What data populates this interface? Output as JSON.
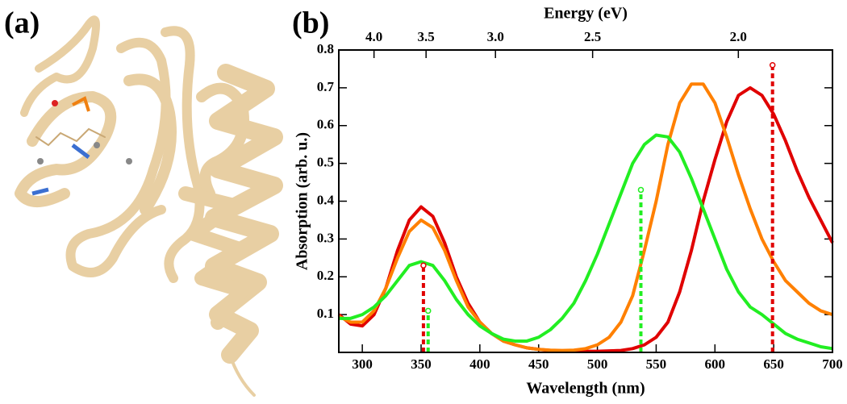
{
  "panel_a_label": "(a)",
  "chart_data": {
    "type": "line",
    "panel_label": "(b)",
    "xlabel": "Wavelength (nm)",
    "ylabel": "Absorption (arb. u.)",
    "x2label": "Energy (eV)",
    "xlim": [
      280,
      700
    ],
    "ylim": [
      0,
      0.8
    ],
    "xticks": [
      300,
      350,
      400,
      450,
      500,
      550,
      600,
      650,
      700
    ],
    "yticks": [
      0.1,
      0.2,
      0.3,
      0.4,
      0.5,
      0.6,
      0.7,
      0.8
    ],
    "x2ticks": [
      {
        "value": 4.0,
        "label": "4.0"
      },
      3.5,
      {
        "value": 3.0,
        "label": "3.0"
      },
      2.5,
      {
        "value": 2.0,
        "label": "2.0"
      }
    ],
    "x": [
      280,
      290,
      300,
      310,
      320,
      330,
      340,
      350,
      360,
      370,
      380,
      390,
      400,
      410,
      420,
      430,
      440,
      450,
      460,
      470,
      480,
      490,
      500,
      510,
      520,
      530,
      540,
      550,
      560,
      570,
      580,
      590,
      600,
      610,
      620,
      630,
      640,
      650,
      660,
      670,
      680,
      690,
      700
    ],
    "series": [
      {
        "color": "#e00000",
        "values": [
          0.1,
          0.075,
          0.07,
          0.1,
          0.17,
          0.27,
          0.35,
          0.385,
          0.36,
          0.29,
          0.2,
          0.13,
          0.08,
          0.05,
          0.03,
          0.02,
          0.012,
          0.008,
          0.005,
          0.004,
          0.003,
          0.003,
          0.003,
          0.004,
          0.005,
          0.01,
          0.02,
          0.04,
          0.08,
          0.16,
          0.27,
          0.4,
          0.51,
          0.61,
          0.68,
          0.7,
          0.68,
          0.63,
          0.56,
          0.48,
          0.41,
          0.35,
          0.29
        ]
      },
      {
        "color": "#ff8000",
        "values": [
          0.095,
          0.08,
          0.08,
          0.11,
          0.17,
          0.25,
          0.32,
          0.35,
          0.33,
          0.27,
          0.19,
          0.12,
          0.08,
          0.05,
          0.03,
          0.02,
          0.012,
          0.008,
          0.006,
          0.005,
          0.006,
          0.01,
          0.02,
          0.04,
          0.08,
          0.15,
          0.27,
          0.4,
          0.55,
          0.66,
          0.71,
          0.71,
          0.66,
          0.57,
          0.47,
          0.38,
          0.3,
          0.24,
          0.19,
          0.16,
          0.13,
          0.11,
          0.1
        ]
      },
      {
        "color": "#22ee22",
        "values": [
          0.09,
          0.09,
          0.1,
          0.12,
          0.15,
          0.19,
          0.23,
          0.24,
          0.23,
          0.19,
          0.14,
          0.1,
          0.07,
          0.05,
          0.035,
          0.03,
          0.03,
          0.04,
          0.06,
          0.09,
          0.13,
          0.19,
          0.26,
          0.34,
          0.42,
          0.5,
          0.55,
          0.575,
          0.57,
          0.53,
          0.46,
          0.38,
          0.3,
          0.22,
          0.16,
          0.12,
          0.1,
          0.075,
          0.05,
          0.035,
          0.025,
          0.015,
          0.01
        ]
      }
    ],
    "stems": [
      {
        "color": "#e00000",
        "x": [
          352,
          649
        ],
        "values": [
          0.23,
          0.76
        ]
      },
      {
        "color": "#22ee22",
        "x": [
          356,
          537
        ],
        "values": [
          0.11,
          0.43
        ]
      }
    ]
  }
}
